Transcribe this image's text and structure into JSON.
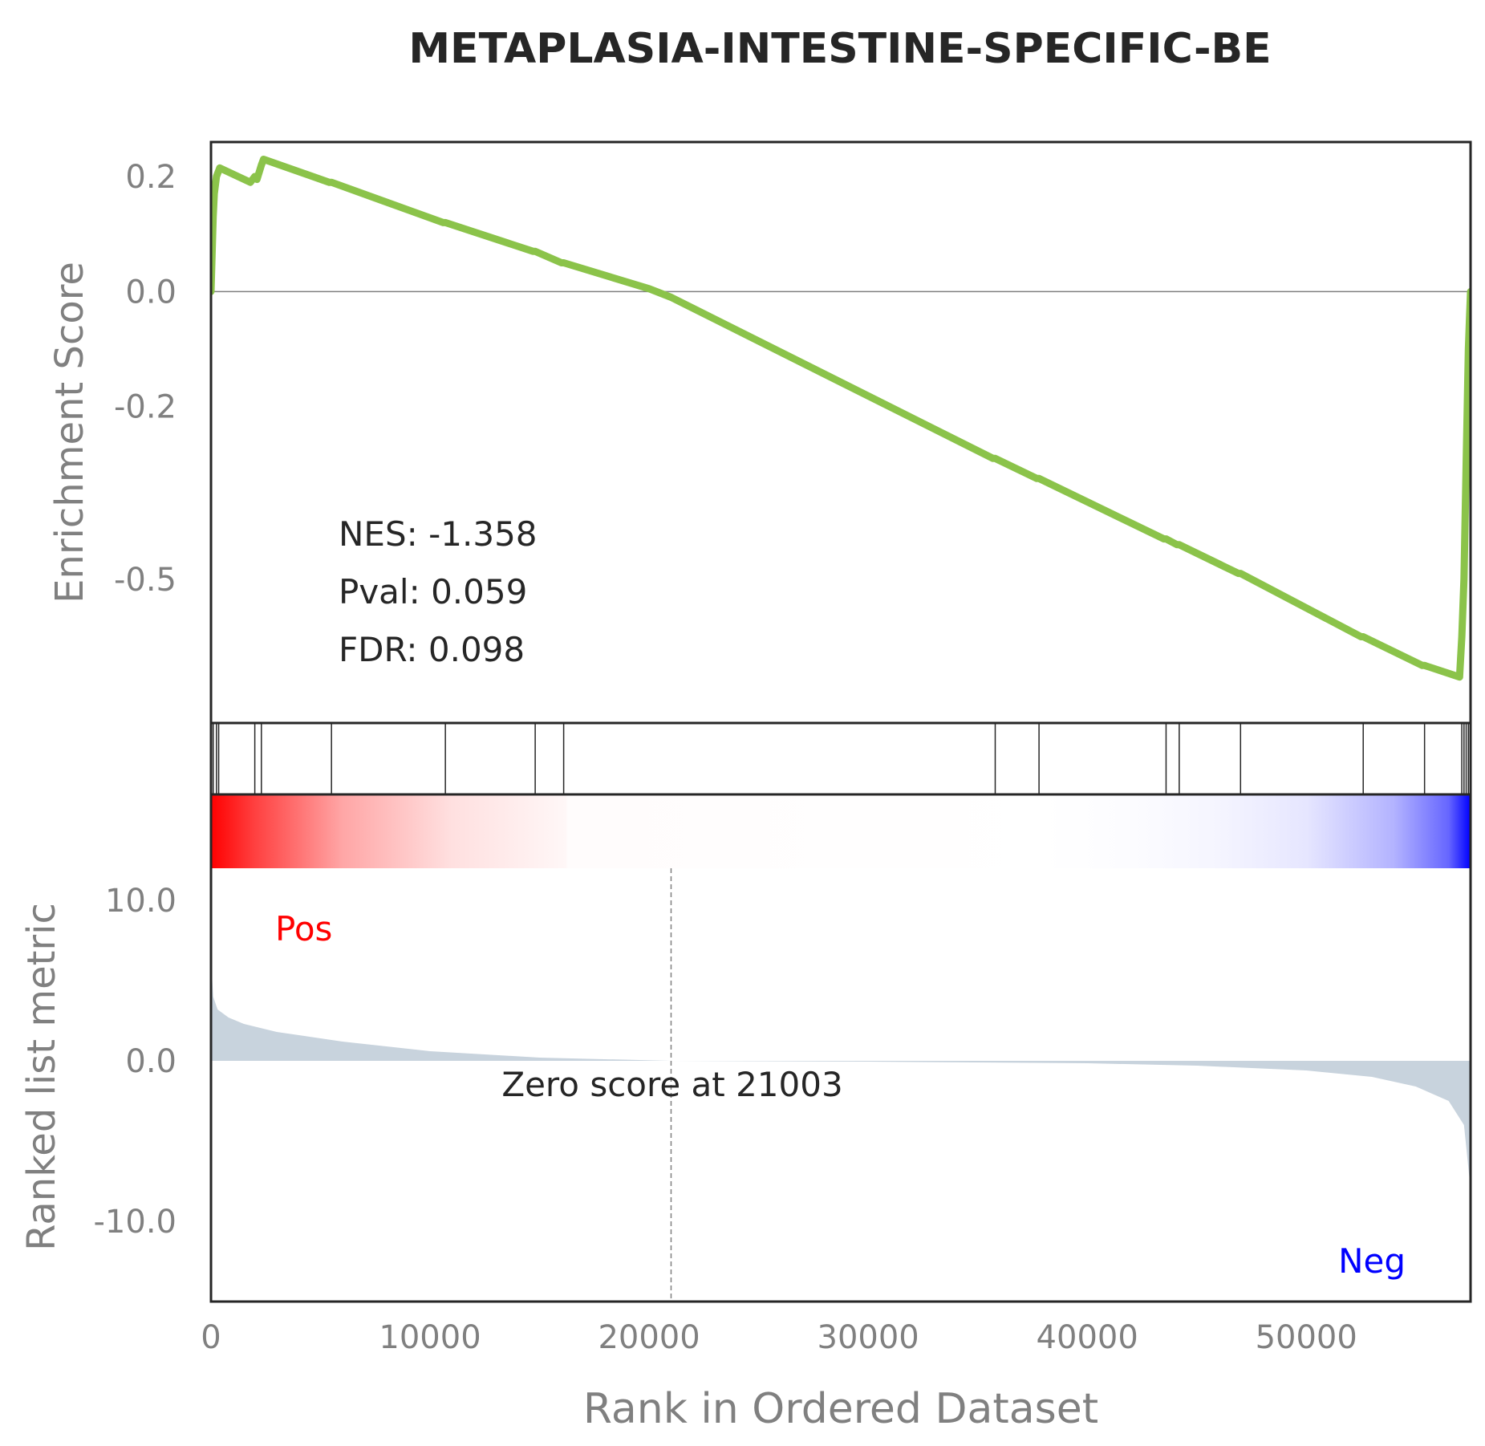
{
  "chart_data": {
    "type": "line",
    "title": "METAPLASIA-INTESTINE-SPECIFIC-BE",
    "xlabel": "Rank in Ordered Dataset",
    "ylabel_top": "Enrichment Score",
    "ylabel_bottom": "Ranked list metric",
    "xlim": [
      0,
      57500
    ],
    "es_ylim": [
      -0.75,
      0.26
    ],
    "metric_ylim": [
      -15,
      12
    ],
    "x_ticks": [
      0,
      10000,
      20000,
      30000,
      40000,
      50000
    ],
    "x_tick_labels": [
      "0",
      "10000",
      "20000",
      "30000",
      "40000",
      "50000"
    ],
    "es_ticks": [
      0.2,
      0.0,
      -0.2,
      -0.5
    ],
    "es_tick_labels": [
      "0.2",
      "0.0",
      "-0.2",
      "-0.5"
    ],
    "metric_ticks": [
      10,
      0,
      -10
    ],
    "metric_tick_labels": [
      "10.0",
      "0.0",
      "-10.0"
    ],
    "colors": {
      "es_line": "#8bc34a",
      "metric_fill": "#c8d3dd",
      "pos_label": "#ff0000",
      "neg_label": "#0000ff",
      "gradient_pos": "#ff0000",
      "gradient_neg": "#0000ff",
      "axes": "#262626",
      "zero_line": "#808080"
    },
    "stats": {
      "nes": "NES: -1.358",
      "pval": "Pval: 0.059",
      "fdr": "FDR: 0.098"
    },
    "zero_score_label": "Zero score at 21003",
    "zero_score_rank": 21003,
    "pos_label": "Pos",
    "neg_label": "Neg",
    "hit_ranks": [
      100,
      250,
      350,
      2000,
      2300,
      5500,
      10700,
      14800,
      16100,
      35800,
      37800,
      43600,
      44200,
      47000,
      52600,
      55400,
      57100,
      57200,
      57300,
      57400
    ],
    "running_es": {
      "x": [
        0,
        100,
        150,
        250,
        350,
        400,
        1800,
        2000,
        2100,
        2300,
        2400,
        5400,
        5500,
        10600,
        10700,
        14700,
        14800,
        16000,
        16100,
        20000,
        21003,
        35700,
        35800,
        37700,
        37800,
        43500,
        43600,
        44100,
        44200,
        46900,
        47000,
        52500,
        52600,
        55300,
        55400,
        57000,
        57100,
        57200,
        57300,
        57350,
        57400,
        57450,
        57500
      ],
      "y": [
        0.0,
        0.13,
        0.17,
        0.2,
        0.21,
        0.215,
        0.19,
        0.2,
        0.195,
        0.22,
        0.23,
        0.19,
        0.19,
        0.12,
        0.12,
        0.07,
        0.07,
        0.05,
        0.05,
        0.005,
        -0.01,
        -0.29,
        -0.29,
        -0.325,
        -0.325,
        -0.43,
        -0.43,
        -0.44,
        -0.44,
        -0.49,
        -0.49,
        -0.6,
        -0.6,
        -0.65,
        -0.65,
        -0.67,
        -0.6,
        -0.5,
        -0.3,
        -0.2,
        -0.1,
        -0.05,
        0.0
      ]
    },
    "ranked_metric": {
      "x": [
        0,
        100,
        300,
        800,
        1500,
        3000,
        6000,
        10000,
        15000,
        21003,
        30000,
        40000,
        45000,
        50000,
        53000,
        55000,
        56500,
        57200,
        57500
      ],
      "y": [
        6.5,
        4.0,
        3.2,
        2.7,
        2.3,
        1.8,
        1.2,
        0.6,
        0.2,
        0.0,
        -0.05,
        -0.15,
        -0.3,
        -0.6,
        -1.0,
        -1.6,
        -2.5,
        -4.0,
        -8.0
      ]
    },
    "gradient_bar": {
      "stops": [
        {
          "rank": 0,
          "value": 1.0
        },
        {
          "rank": 2000,
          "value": 0.75
        },
        {
          "rank": 6000,
          "value": 0.35
        },
        {
          "rank": 11000,
          "value": 0.12
        },
        {
          "rank": 16200,
          "value": 0.03
        },
        {
          "rank": 16300,
          "value": 0.01
        },
        {
          "rank": 38000,
          "value": 0.0
        },
        {
          "rank": 42000,
          "value": -0.01
        },
        {
          "rank": 46000,
          "value": -0.04
        },
        {
          "rank": 50000,
          "value": -0.1
        },
        {
          "rank": 54000,
          "value": -0.3
        },
        {
          "rank": 56500,
          "value": -0.6
        },
        {
          "rank": 57500,
          "value": -1.0
        }
      ]
    }
  }
}
